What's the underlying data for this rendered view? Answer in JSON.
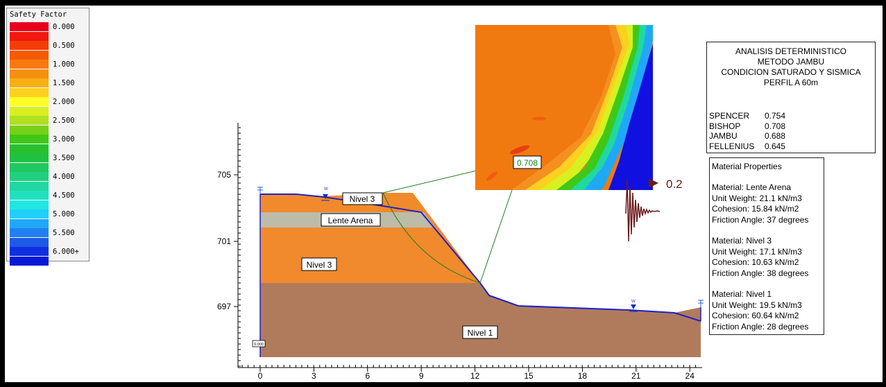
{
  "legend": {
    "title": "Safety Factor",
    "entries": [
      {
        "label": "0.000",
        "colors": [
          "#e8001a",
          "#f01a0f"
        ]
      },
      {
        "label": "0.500",
        "colors": [
          "#f43d06",
          "#f65a05"
        ]
      },
      {
        "label": "1.000",
        "colors": [
          "#f77a10",
          "#f59010"
        ]
      },
      {
        "label": "1.500",
        "colors": [
          "#f6b010",
          "#fed020"
        ]
      },
      {
        "label": "2.000",
        "colors": [
          "#ffff28",
          "#d8f020"
        ]
      },
      {
        "label": "2.500",
        "colors": [
          "#b0e020",
          "#78d018"
        ]
      },
      {
        "label": "3.000",
        "colors": [
          "#40c818",
          "#28c030"
        ]
      },
      {
        "label": "3.500",
        "colors": [
          "#20c040",
          "#20c860"
        ]
      },
      {
        "label": "4.000",
        "colors": [
          "#20d080",
          "#20d8a0"
        ]
      },
      {
        "label": "4.500",
        "colors": [
          "#20e0c0",
          "#20e8e0"
        ]
      },
      {
        "label": "5.000",
        "colors": [
          "#20d0f8",
          "#20a8f8"
        ]
      },
      {
        "label": "5.500",
        "colors": [
          "#2080f0",
          "#2058e8"
        ]
      },
      {
        "label": "6.000+",
        "colors": [
          "#1030e0",
          "#0818d8"
        ]
      }
    ]
  },
  "colors": {
    "nivel3": "#f08a2c",
    "nivel1": "#b07b5d",
    "lente": "#bcbca8",
    "slope_line": "#2020c8",
    "slip_line": "#208020",
    "wave": "#6b1a1a",
    "zoom_orange": "#f07a10",
    "zoom_blue": "#1010e0"
  },
  "plot": {
    "y_ticks": [
      "705",
      "701",
      "697"
    ],
    "x_ticks": [
      "0",
      "3",
      "6",
      "9",
      "12",
      "15",
      "18",
      "21",
      "24"
    ]
  },
  "labels": {
    "nivel3_top": "Nivel 3",
    "lente_arena": "Lente Arena",
    "nivel3_main": "Nivel 3",
    "nivel1": "Nivel 1",
    "fs_value": "0.708",
    "seismic": "0.2",
    "base_marker": "0.000",
    "water_marker": "W"
  },
  "analysis": {
    "title_lines": [
      "ANALISIS DETERMINISTICO",
      "METODO JAMBU",
      "CONDICION SATURADO Y SISMICA",
      "PERFIL A 60m"
    ],
    "methods": [
      {
        "name": "SPENCER",
        "value": "0.754"
      },
      {
        "name": "BISHOP",
        "value": "0.708"
      },
      {
        "name": "JAMBU",
        "value": "0.688"
      },
      {
        "name": "FELLENIUS",
        "value": "0.645"
      }
    ]
  },
  "materials": {
    "heading": "Material Properties",
    "items": [
      {
        "name": "Material: Lente Arena",
        "unit_weight": "Unit Weight: 21.1 kN/m3",
        "cohesion": "Cohesion: 15.84 kN/m2",
        "friction": "Friction Angle: 37 degrees"
      },
      {
        "name": "Material: Nivel 3",
        "unit_weight": "Unit Weight: 17.1 kN/m3",
        "cohesion": "Cohesion: 10.63 kN/m2",
        "friction": "Friction Angle: 38 degrees"
      },
      {
        "name": "Material: Nivel 1",
        "unit_weight": "Unit Weight: 19.5 kN/m3",
        "cohesion": "Cohesion: 60.64 kN/m2",
        "friction": "Friction Angle: 28 degrees"
      }
    ]
  }
}
